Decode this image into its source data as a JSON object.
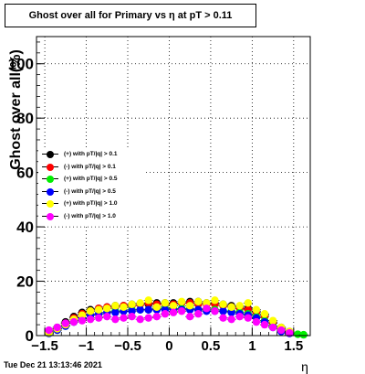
{
  "title": "Ghost over all for Primary vs  η at pT > 0.11",
  "datestamp": "Tue Dec 21 13:13:46 2021",
  "chart_data": {
    "type": "scatter",
    "title": "Ghost over all for Primary vs  η at pT > 0.11",
    "xlabel": "η",
    "ylabel": "Ghost over all(%)",
    "xlim": [
      -1.6,
      1.7
    ],
    "ylim": [
      0,
      110
    ],
    "x_ticks": [
      "−1.5",
      "−1",
      "−0.5",
      "0",
      "0.5",
      "1",
      "1.5"
    ],
    "y_ticks": [
      "0",
      "20",
      "40",
      "60",
      "80",
      "100"
    ],
    "grid": true,
    "legend_position": "middle-left",
    "series": [
      {
        "name": "(+) with pT/|q| > 0.1",
        "color": "#000000",
        "x": [
          -1.45,
          -1.35,
          -1.25,
          -1.15,
          -1.05,
          -0.95,
          -0.85,
          -0.75,
          -0.65,
          -0.55,
          -0.45,
          -0.35,
          -0.25,
          -0.15,
          -0.05,
          0.05,
          0.15,
          0.25,
          0.35,
          0.45,
          0.55,
          0.65,
          0.75,
          0.85,
          0.95,
          1.05,
          1.15,
          1.25,
          1.35,
          1.45
        ],
        "y": [
          1.5,
          3,
          5,
          7,
          8.5,
          9.5,
          10,
          10.5,
          11,
          11,
          11.5,
          11.5,
          11.5,
          12,
          12,
          12,
          12,
          12.5,
          12.5,
          12,
          12,
          11.5,
          11,
          10.5,
          10,
          9,
          7.5,
          5,
          3,
          1.5
        ]
      },
      {
        "name": "(-) with pT/|q| > 0.1",
        "color": "#ff0000",
        "x": [
          -1.45,
          -1.35,
          -1.25,
          -1.15,
          -1.05,
          -0.95,
          -0.85,
          -0.75,
          -0.65,
          -0.55,
          -0.45,
          -0.35,
          -0.25,
          -0.15,
          -0.05,
          0.05,
          0.15,
          0.25,
          0.35,
          0.45,
          0.55,
          0.65,
          0.75,
          0.85,
          0.95,
          1.05,
          1.15,
          1.25,
          1.35,
          1.45
        ],
        "y": [
          1,
          2.5,
          4.5,
          6.5,
          8,
          9,
          10,
          10.5,
          10.5,
          11,
          11,
          11.5,
          12,
          11.5,
          11.5,
          11.5,
          12,
          12,
          11.5,
          11.5,
          11.5,
          11,
          10.5,
          10,
          9.5,
          8.5,
          7,
          4.5,
          2.5,
          1
        ]
      },
      {
        "name": "(+) with pT/|q| > 0.5",
        "color": "#00ee00",
        "x": [
          -1.45,
          -1.35,
          -1.25,
          -1.15,
          -1.05,
          -0.95,
          -0.85,
          -0.75,
          -0.65,
          -0.55,
          -0.45,
          -0.35,
          -0.25,
          -0.15,
          -0.05,
          0.05,
          0.15,
          0.25,
          0.35,
          0.45,
          0.55,
          0.65,
          0.75,
          0.85,
          0.95,
          1.05,
          1.15,
          1.25,
          1.35,
          1.45,
          1.55,
          1.62
        ],
        "y": [
          0.8,
          2,
          3.5,
          5,
          6.5,
          7.5,
          8,
          8.5,
          9,
          9,
          9.5,
          9.5,
          9.5,
          10,
          10,
          10,
          10,
          10,
          9.5,
          9.5,
          9.5,
          9,
          9,
          8.5,
          8,
          7,
          5.5,
          3.5,
          2,
          1,
          0.5,
          0.3
        ]
      },
      {
        "name": "(-) with pT/|q| > 0.5",
        "color": "#0000ff",
        "x": [
          -1.45,
          -1.35,
          -1.25,
          -1.15,
          -1.05,
          -0.95,
          -0.85,
          -0.75,
          -0.65,
          -0.55,
          -0.45,
          -0.35,
          -0.25,
          -0.15,
          -0.05,
          0.05,
          0.15,
          0.25,
          0.35,
          0.45,
          0.55,
          0.65,
          0.75,
          0.85,
          0.95,
          1.05,
          1.15,
          1.25,
          1.35,
          1.45
        ],
        "y": [
          0.8,
          2,
          3.5,
          5,
          6.5,
          7.5,
          8,
          8.5,
          8.5,
          9,
          9,
          9.5,
          9.5,
          9.5,
          9.5,
          9.5,
          9.5,
          9.5,
          9.5,
          9,
          9,
          9,
          8.5,
          8,
          7.5,
          6.5,
          5,
          3,
          1.5,
          0.8
        ]
      },
      {
        "name": "(+) with pT/|q| > 1.0",
        "color": "#ffff00",
        "x": [
          -1.45,
          -1.35,
          -1.25,
          -1.15,
          -1.05,
          -0.95,
          -0.85,
          -0.75,
          -0.65,
          -0.55,
          -0.45,
          -0.35,
          -0.25,
          -0.15,
          -0.05,
          0.05,
          0.15,
          0.25,
          0.35,
          0.45,
          0.55,
          0.65,
          0.75,
          0.85,
          0.95,
          1.05,
          1.15,
          1.25,
          1.35,
          1.45
        ],
        "y": [
          1,
          2.5,
          4,
          6,
          7.5,
          9,
          9.5,
          10,
          11,
          10.5,
          11.5,
          12,
          13,
          10.5,
          12,
          11,
          12.5,
          11,
          12.5,
          12,
          13,
          11.5,
          10.5,
          11,
          12,
          9.5,
          8,
          5.5,
          3,
          1.5
        ]
      },
      {
        "name": "(-) with pT/|q| > 1.0",
        "color": "#ff00ff",
        "x": [
          -1.45,
          -1.35,
          -1.25,
          -1.15,
          -1.05,
          -0.95,
          -0.85,
          -0.75,
          -0.65,
          -0.55,
          -0.45,
          -0.35,
          -0.25,
          -0.15,
          -0.05,
          0.05,
          0.15,
          0.25,
          0.35,
          0.45,
          0.55,
          0.65,
          0.75,
          0.85,
          0.95,
          1.05,
          1.15,
          1.25,
          1.35,
          1.45
        ],
        "y": [
          2,
          3,
          4.5,
          5,
          5.5,
          6,
          6.5,
          7,
          6,
          6.5,
          7,
          6,
          6.5,
          7,
          8,
          8.5,
          9,
          7,
          8,
          10,
          9,
          6.5,
          6,
          7,
          6.5,
          5,
          4,
          3,
          2,
          1
        ]
      }
    ]
  }
}
